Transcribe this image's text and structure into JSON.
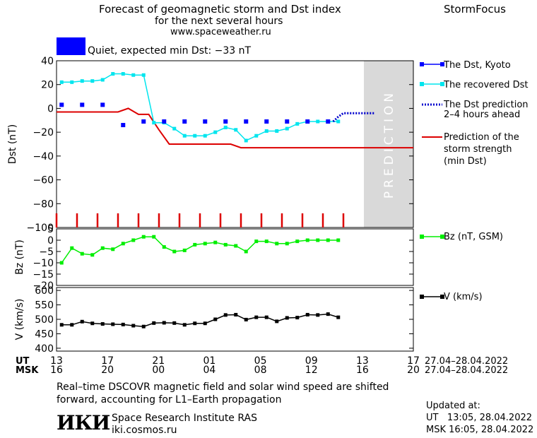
{
  "header": {
    "title_line1": "Forecast of geomagnetic storm and Dst index",
    "title_line2": "for the next several hours",
    "url": "www.spaceweather.ru",
    "brand": "StormFocus"
  },
  "status": {
    "color": "#0000ff",
    "text": "Quiet, expected min Dst: −33 nT"
  },
  "prediction_label": "PREDICTION",
  "colors": {
    "dst_kyoto": "#0000ff",
    "recovered": "#00e5ee",
    "prediction": "#0000cd",
    "storm": "#dd0000",
    "bz": "#00ee00",
    "v": "#000000",
    "shade": "#d9d9d9"
  },
  "time_axis": {
    "ut_label": "UT",
    "msk_label": "MSK",
    "ut_ticks": [
      "13",
      "17",
      "21",
      "01",
      "05",
      "09",
      "13",
      "17"
    ],
    "msk_ticks": [
      "16",
      "20",
      "00",
      "04",
      "08",
      "12",
      "16",
      "20"
    ],
    "ut_range_label": "27.04–28.04.2022",
    "msk_range_label": "27.04–28.04.2022"
  },
  "chart_data": [
    {
      "type": "line",
      "panel": "dst",
      "ylabel": "Dst (nT)",
      "ylim": [
        -100,
        40
      ],
      "yticks": [
        "40",
        "20",
        "0",
        "−20",
        "−40",
        "−60",
        "−80",
        "−100"
      ],
      "xlim": [
        13,
        43
      ],
      "prediction_region": [
        43,
        47
      ],
      "series": [
        {
          "name": "The Dst, Kyoto",
          "style": "squares",
          "x": [
            13.5,
            15.5,
            17.5,
            19.5,
            21.5,
            23.5,
            25.5,
            27.5,
            29.5,
            31.5,
            33.5,
            35.5,
            37.5,
            39.5
          ],
          "values": [
            3,
            3,
            3,
            -14,
            -11,
            -11,
            -11,
            -11,
            -11,
            -11,
            -11,
            -11,
            -11,
            -11
          ]
        },
        {
          "name": "The recovered Dst",
          "style": "line-squares",
          "x": [
            13.5,
            14.5,
            15.5,
            16.5,
            17.5,
            18.5,
            19.5,
            20.5,
            21.5,
            22.5,
            23.5,
            24.5,
            25.5,
            26.5,
            27.5,
            28.5,
            29.5,
            30.5,
            31.5,
            32.5,
            33.5,
            34.5,
            35.5,
            36.5,
            37.5,
            38.5,
            39.5,
            40.5
          ],
          "values": [
            22,
            22,
            23,
            23,
            24,
            29,
            29,
            28,
            28,
            -12,
            -12,
            -17,
            -23,
            -23,
            -23,
            -20,
            -16,
            -18,
            -27,
            -23,
            -19,
            -19,
            -17,
            -13,
            -11,
            -11,
            -11,
            -11
          ]
        },
        {
          "name": "The Dst prediction 2–4 hours ahead",
          "style": "dotted",
          "x": [
            40,
            40.5,
            41,
            42,
            43,
            44
          ],
          "values": [
            -11,
            -7,
            -4,
            -4,
            -4,
            -4
          ]
        },
        {
          "name": "Prediction of the storm strength (min Dst)",
          "style": "step-line",
          "x": [
            13,
            19,
            20,
            21,
            22,
            23,
            24,
            25,
            26,
            27,
            28,
            29,
            30,
            31,
            32,
            33,
            34,
            35,
            36,
            37,
            38,
            39,
            40,
            41,
            42,
            43
          ],
          "values": [
            -3,
            -3,
            0,
            -5,
            -5,
            -18,
            -30,
            -30,
            -30,
            -30,
            -30,
            -30,
            -30,
            -33,
            -33,
            -33,
            -33,
            -33,
            -33,
            -33,
            -33,
            -33,
            -33,
            -33,
            -33,
            -33
          ]
        }
      ],
      "marker_ticks_x": [
        13,
        15,
        17,
        19,
        21,
        23,
        25,
        27,
        29,
        31,
        33,
        35,
        37,
        39,
        41
      ]
    },
    {
      "type": "line",
      "panel": "bz",
      "ylabel": "Bz (nT)",
      "ylim": [
        -20,
        5
      ],
      "yticks": [
        "5",
        "0",
        "−5",
        "−10",
        "−15",
        "−20"
      ],
      "xlim": [
        13,
        43
      ],
      "series": [
        {
          "name": "Bz (nT, GSM)",
          "x": [
            13.5,
            14.5,
            15.5,
            16.5,
            17.5,
            18.5,
            19.5,
            20.5,
            21.5,
            22.5,
            23.5,
            24.5,
            25.5,
            26.5,
            27.5,
            28.5,
            29.5,
            30.5,
            31.5,
            32.5,
            33.5,
            34.5,
            35.5,
            36.5,
            37.5,
            38.5,
            39.5,
            40.5
          ],
          "values": [
            -10,
            -3.5,
            -6,
            -6.5,
            -3.5,
            -4,
            -1.5,
            0,
            1.5,
            1.5,
            -3,
            -5,
            -4.5,
            -2,
            -1.5,
            -1,
            -2,
            -2.5,
            -5,
            -0.5,
            -0.5,
            -1.5,
            -1.5,
            -0.5,
            0,
            0,
            0,
            0
          ]
        }
      ]
    },
    {
      "type": "line",
      "panel": "v",
      "ylabel": "V (km/s)",
      "ylim": [
        390,
        610
      ],
      "yticks": [
        "600",
        "550",
        "500",
        "450",
        "400"
      ],
      "xlim": [
        13,
        43
      ],
      "series": [
        {
          "name": "V (km/s)",
          "x": [
            13.5,
            14.5,
            15.5,
            16.5,
            17.5,
            18.5,
            19.5,
            20.5,
            21.5,
            22.5,
            23.5,
            24.5,
            25.5,
            26.5,
            27.5,
            28.5,
            29.5,
            30.5,
            31.5,
            32.5,
            33.5,
            34.5,
            35.5,
            36.5,
            37.5,
            38.5,
            39.5,
            40.5
          ],
          "values": [
            481,
            481,
            492,
            486,
            484,
            483,
            482,
            478,
            475,
            487,
            488,
            487,
            481,
            486,
            486,
            500,
            515,
            516,
            499,
            507,
            507,
            493,
            505,
            506,
            516,
            515,
            518,
            507
          ]
        }
      ]
    }
  ],
  "footer": {
    "note_line1": "Real–time DSCOVR magnetic field and solar wind speed are shifted",
    "note_line2": "forward, accounting for L1–Earth propagation",
    "institute": "Space Research Institute RAS",
    "institute_url": "iki.cosmos.ru",
    "logo_text": "ИКИ",
    "updated_label": "Updated at:",
    "updated_ut": "UT   13:05, 28.04.2022",
    "updated_msk": "MSK 16:05, 28.04.2022"
  }
}
